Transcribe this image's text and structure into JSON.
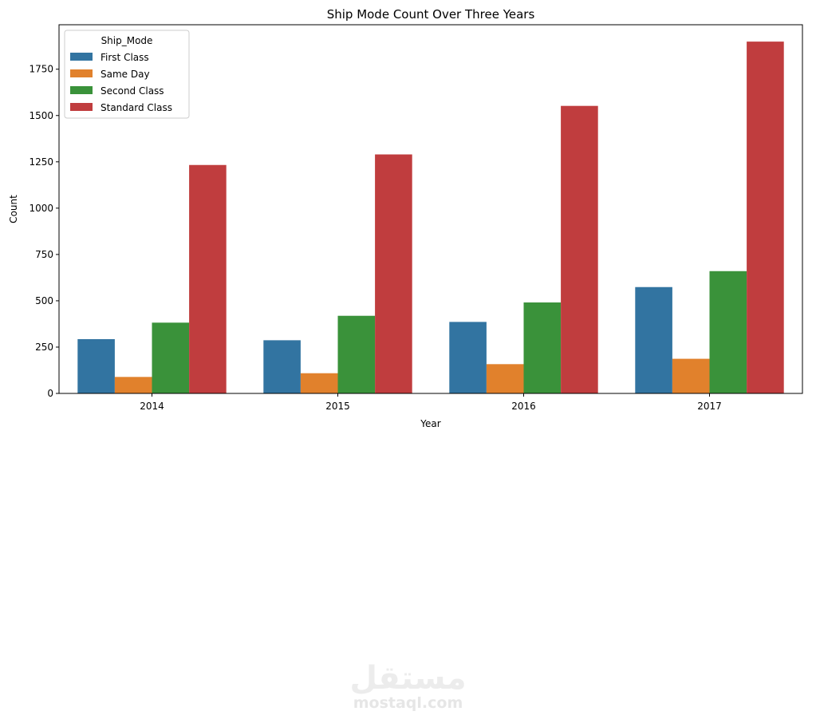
{
  "chart_data": {
    "type": "bar",
    "title": "Ship Mode Count Over Three Years",
    "xlabel": "Year",
    "ylabel": "Count",
    "categories": [
      "2014",
      "2015",
      "2016",
      "2017"
    ],
    "ylim": [
      0,
      1990
    ],
    "yticks": [
      0,
      250,
      500,
      750,
      1000,
      1250,
      1500,
      1750
    ],
    "grid": false,
    "legend": {
      "title": "Ship_Mode",
      "placement": "top-left"
    },
    "series": [
      {
        "name": "First Class",
        "color": "#3274a1",
        "values": [
          293,
          287,
          386,
          574
        ]
      },
      {
        "name": "Same Day",
        "color": "#e1812c",
        "values": [
          89,
          109,
          158,
          187
        ]
      },
      {
        "name": "Second Class",
        "color": "#3a923a",
        "values": [
          382,
          419,
          491,
          660
        ]
      },
      {
        "name": "Standard Class",
        "color": "#c03d3e",
        "values": [
          1233,
          1290,
          1552,
          1899
        ]
      }
    ]
  },
  "watermark": {
    "arabic": "مستقل",
    "latin": "mostaql.com"
  }
}
